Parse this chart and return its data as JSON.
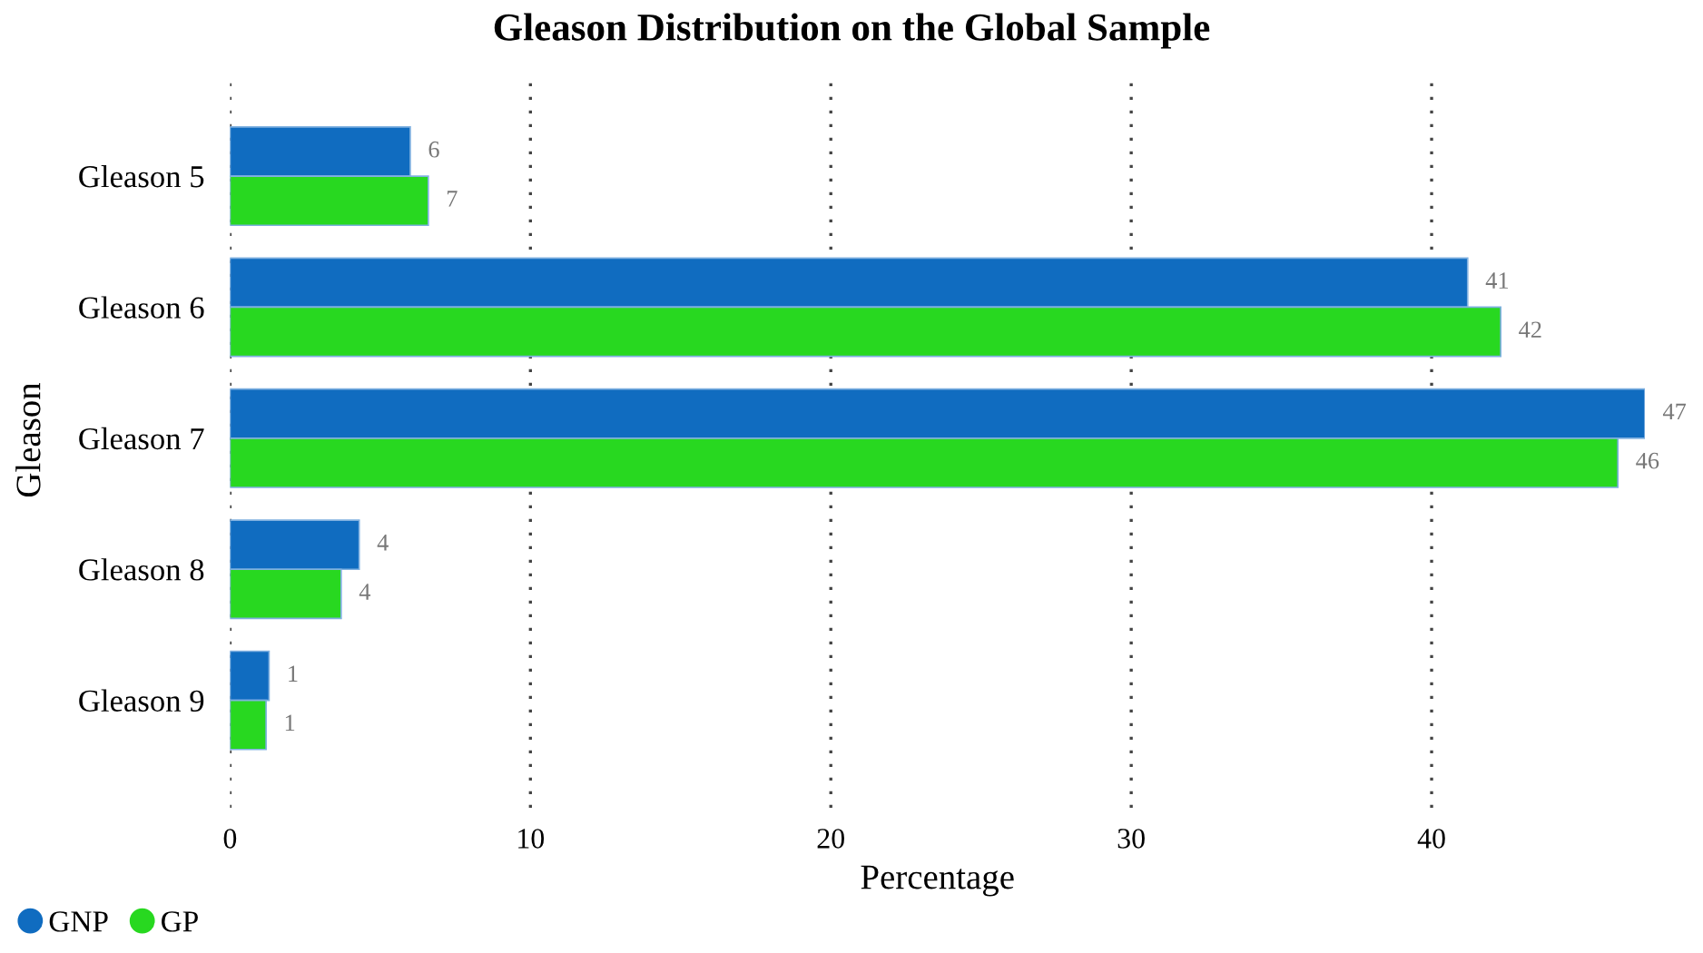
{
  "chart_data": {
    "type": "bar",
    "orientation": "horizontal",
    "title": "Gleason Distribution on the Global Sample",
    "xlabel": "Percentage",
    "ylabel": "Gleason",
    "categories": [
      "Gleason 5",
      "Gleason 6",
      "Gleason 7",
      "Gleason 8",
      "Gleason 9"
    ],
    "series": [
      {
        "name": "GNP",
        "color": "#106cc0",
        "values": [
          6.0,
          41.2,
          47.1,
          4.3,
          1.3
        ],
        "value_labels": [
          "6",
          "41",
          "47",
          "4",
          "1"
        ]
      },
      {
        "name": "GP",
        "color": "#28d820",
        "values": [
          6.6,
          42.3,
          46.2,
          3.7,
          1.2
        ],
        "value_labels": [
          "7",
          "42",
          "46",
          "4",
          "1"
        ]
      }
    ],
    "xlim": [
      0,
      47.1
    ],
    "xticks": [
      0,
      10,
      20,
      30,
      40
    ],
    "grid": "x",
    "legend": "bottom left"
  }
}
